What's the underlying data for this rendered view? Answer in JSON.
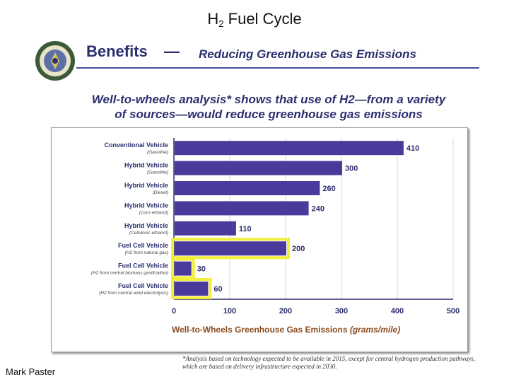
{
  "slide": {
    "title_main": "H",
    "title_sub": "2",
    "title_rest": " Fuel Cycle",
    "author": "Mark Paster"
  },
  "header": {
    "benefits": "Benefits",
    "dash": "—",
    "subtitle": "Reducing Greenhouse Gas Emissions"
  },
  "headline": {
    "line1": "Well-to-wheels analysis* shows that use of H2—from a variety",
    "line2": "of sources—would reduce greenhouse gas emissions"
  },
  "footnote": "*Analysis based on technology expected to be available in 2015, except for central hydrogen production pathways, which are based on delivery infrastructure expected in 2030.",
  "colors": {
    "bar": "#4a3a9c",
    "highlight": "#f3ee3a",
    "text_navy": "#2b2f6e",
    "xlabel_orange": "#8a4a1c"
  },
  "chart_data": {
    "type": "bar",
    "orientation": "horizontal",
    "categories": [
      {
        "name": "Conventional Vehicle",
        "detail": "(Gasoline)"
      },
      {
        "name": "Hybrid Vehicle",
        "detail": "(Gasoline)"
      },
      {
        "name": "Hybrid Vehicle",
        "detail": "(Diesel)"
      },
      {
        "name": "Hybrid Vehicle",
        "detail": "(Corn ethanol)"
      },
      {
        "name": "Hybrid Vehicle",
        "detail": "(Cellulosic ethanol)"
      },
      {
        "name": "Fuel Cell Vehicle",
        "detail": "(H2 from natural gas)"
      },
      {
        "name": "Fuel Cell Vehicle",
        "detail": "(H2 from central biomass gasification)"
      },
      {
        "name": "Fuel Cell Vehicle",
        "detail": "(H2 from central wind electrolysis)"
      }
    ],
    "values": [
      410,
      300,
      260,
      240,
      110,
      200,
      30,
      60
    ],
    "highlighted": [
      false,
      false,
      false,
      false,
      false,
      true,
      true,
      true
    ],
    "xlim": [
      0,
      500
    ],
    "xticks": [
      "0",
      "100",
      "200",
      "300",
      "400",
      "500"
    ],
    "xlabel": "Well-to-Wheels Greenhouse Gas Emissions",
    "xlabel_unit": "(grams/mile)",
    "grid": true
  }
}
